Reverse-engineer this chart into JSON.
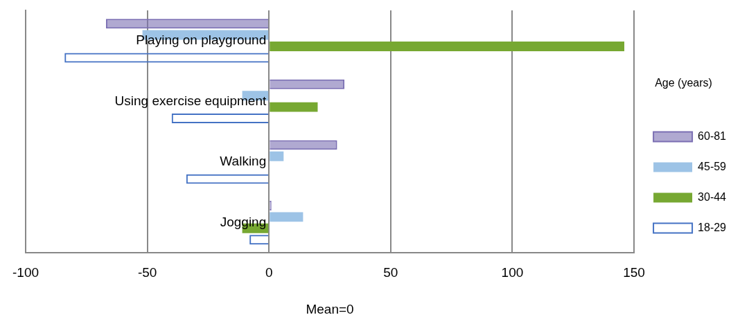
{
  "chart_data": {
    "type": "bar",
    "orientation": "horizontal",
    "categories": [
      "Playing on playground",
      "Using exercise equipment",
      "Walking",
      "Jogging"
    ],
    "series": [
      {
        "name": "60-81",
        "color": "#7b6fb3",
        "values": [
          -67,
          31,
          28,
          1
        ]
      },
      {
        "name": "45-59",
        "color": "#9dc3e6",
        "values": [
          -52,
          -11,
          6,
          14
        ]
      },
      {
        "name": "30-44",
        "color": "#77a832",
        "values": [
          146,
          20,
          null,
          -11
        ]
      },
      {
        "name": "18-29",
        "color": "#4472c4",
        "values": [
          -84,
          -40,
          -34,
          -8
        ]
      }
    ],
    "xlim": [
      -100,
      150
    ],
    "xticks": [
      -100,
      -50,
      0,
      50,
      100,
      150
    ],
    "xlabel": "Mean=0",
    "legend_title": "Age (years)",
    "legend": "right",
    "grid": "x"
  }
}
